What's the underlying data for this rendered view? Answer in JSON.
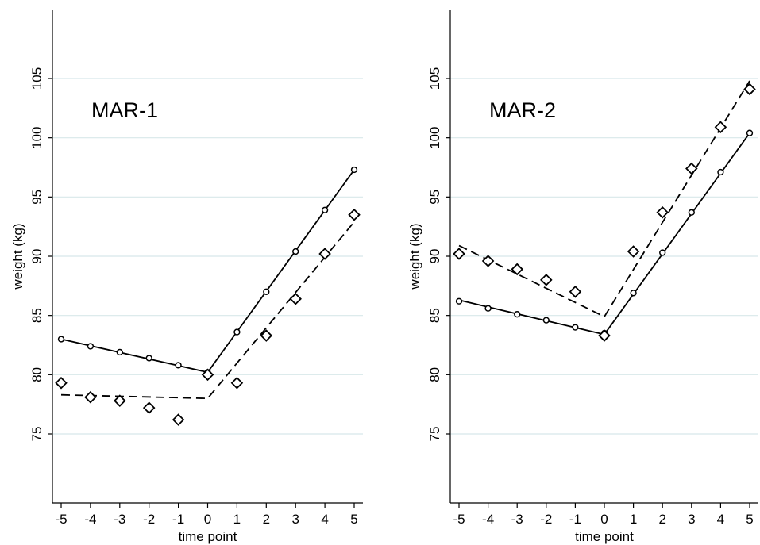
{
  "chart_data": [
    {
      "type": "line",
      "title": "MAR-1",
      "xlabel": "time point",
      "ylabel": "weight (kg)",
      "xlim": [
        -5,
        5
      ],
      "ylim": [
        70,
        110
      ],
      "x_ticks": [
        "-5",
        "-4",
        "-3",
        "-2",
        "-1",
        "0",
        "1",
        "2",
        "3",
        "4",
        "5"
      ],
      "y_ticks": [
        "75",
        "80",
        "85",
        "90",
        "95",
        "100",
        "105"
      ],
      "grid": true,
      "series": [
        {
          "style": "solid",
          "marker": "circle",
          "color": "#000000",
          "x": [
            -5,
            -4,
            -3,
            -2,
            -1,
            0,
            1,
            2,
            3,
            4,
            5
          ],
          "points": [
            83.0,
            82.4,
            81.9,
            81.4,
            80.8,
            80.2,
            83.6,
            87.0,
            90.4,
            93.9,
            97.3
          ],
          "line": [
            [
              -5,
              83.0
            ],
            [
              0,
              80.2
            ],
            [
              5,
              97.3
            ]
          ]
        },
        {
          "style": "dashed",
          "marker": "diamond",
          "color": "#000000",
          "x": [
            -5,
            -4,
            -3,
            -2,
            -1,
            0,
            1,
            2,
            3,
            4,
            5
          ],
          "points": [
            79.3,
            78.1,
            77.8,
            77.2,
            76.2,
            80.0,
            79.3,
            83.3,
            86.4,
            90.2,
            93.5
          ],
          "line": [
            [
              -5,
              78.3
            ],
            [
              0,
              78.0
            ],
            [
              5,
              92.9
            ]
          ]
        }
      ]
    },
    {
      "type": "line",
      "title": "MAR-2",
      "xlabel": "time point",
      "ylabel": "weight (kg)",
      "xlim": [
        -5,
        5
      ],
      "ylim": [
        70,
        110
      ],
      "x_ticks": [
        "-5",
        "-4",
        "-3",
        "-2",
        "-1",
        "0",
        "1",
        "2",
        "3",
        "4",
        "5"
      ],
      "y_ticks": [
        "75",
        "80",
        "85",
        "90",
        "95",
        "100",
        "105"
      ],
      "grid": true,
      "series": [
        {
          "style": "solid",
          "marker": "circle",
          "color": "#000000",
          "x": [
            -5,
            -4,
            -3,
            -2,
            -1,
            0,
            1,
            2,
            3,
            4,
            5
          ],
          "points": [
            86.2,
            85.6,
            85.1,
            84.6,
            84.0,
            83.5,
            86.9,
            90.3,
            93.7,
            97.1,
            100.4
          ],
          "line": [
            [
              -5,
              86.3
            ],
            [
              0,
              83.4
            ],
            [
              5,
              100.4
            ]
          ]
        },
        {
          "style": "dashed",
          "marker": "diamond",
          "color": "#000000",
          "x": [
            -5,
            -4,
            -3,
            -2,
            -1,
            0,
            1,
            2,
            3,
            4,
            5
          ],
          "points": [
            90.2,
            89.6,
            88.9,
            88.0,
            87.0,
            83.3,
            90.4,
            93.7,
            97.4,
            100.9,
            104.1
          ],
          "line": [
            [
              -5,
              90.9
            ],
            [
              0,
              84.9
            ],
            [
              5,
              104.8
            ]
          ]
        }
      ]
    }
  ],
  "colors": {
    "grid": "#d8e8ea",
    "axis": "#000000",
    "background": "#ffffff"
  }
}
